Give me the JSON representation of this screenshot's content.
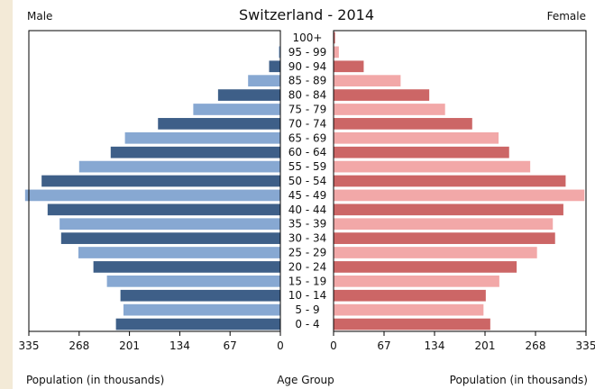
{
  "chart_data": {
    "type": "bar",
    "title": "Switzerland - 2014",
    "left_label": "Male",
    "right_label": "Female",
    "center_axis_title": "Age Group",
    "left_axis_title": "Population (in thousands)",
    "right_axis_title": "Population (in thousands)",
    "left_ticks": [
      "335",
      "268",
      "201",
      "134",
      "67",
      "0"
    ],
    "right_ticks": [
      "0",
      "67",
      "134",
      "201",
      "268",
      "335"
    ],
    "xlim": [
      0,
      335
    ],
    "categories": [
      "100+",
      "95 - 99",
      "90 - 94",
      "85 - 89",
      "80 - 84",
      "75 - 79",
      "70 - 74",
      "65 - 69",
      "60 - 64",
      "55 - 59",
      "50 - 54",
      "45 - 49",
      "40 - 44",
      "35 - 39",
      "30 - 34",
      "25 - 29",
      "20 - 24",
      "15 - 19",
      "10 - 14",
      "5 - 9",
      "0 - 4"
    ],
    "series": [
      {
        "name": "Male",
        "color_dark": "#3e5f88",
        "color_light": "#87a8d2",
        "values": [
          0.5,
          2,
          15,
          43,
          83,
          116,
          163,
          207,
          226,
          268,
          318,
          340,
          310,
          294,
          292,
          269,
          249,
          231,
          213,
          209,
          219
        ]
      },
      {
        "name": "Female",
        "color_dark": "#cc6666",
        "color_light": "#f2a8a8",
        "values": [
          2,
          7,
          40,
          89,
          127,
          148,
          184,
          219,
          233,
          261,
          308,
          333,
          305,
          291,
          294,
          270,
          243,
          220,
          202,
          199,
          208
        ]
      }
    ],
    "grid": false,
    "legend": "none"
  }
}
